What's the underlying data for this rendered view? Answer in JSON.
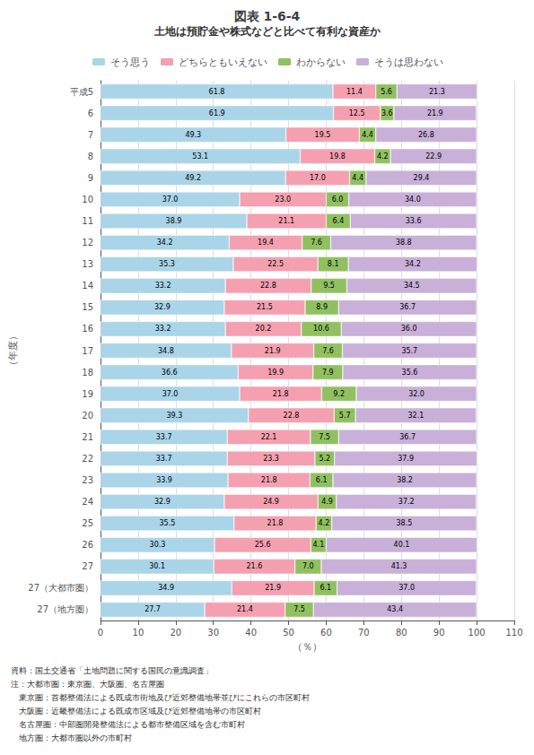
{
  "chart_data": {
    "type": "bar",
    "orientation": "horizontal",
    "stacked": true,
    "title": "図表 1-6-4",
    "subtitle": "土地は預貯金や株式などと比べて有利な資産か",
    "categories": [
      "平成5",
      "6",
      "7",
      "8",
      "9",
      "10",
      "11",
      "12",
      "13",
      "14",
      "15",
      "16",
      "17",
      "18",
      "19",
      "20",
      "21",
      "22",
      "23",
      "24",
      "25",
      "26",
      "27",
      "27（大都市圏）",
      "27（地方圏）"
    ],
    "series": [
      {
        "name": "そう思う",
        "color": "#aad4e8",
        "values": [
          61.8,
          61.9,
          49.3,
          53.1,
          49.2,
          37.0,
          38.9,
          34.2,
          35.3,
          33.2,
          32.9,
          33.2,
          34.8,
          36.6,
          37.0,
          39.3,
          33.7,
          33.7,
          33.9,
          32.9,
          35.5,
          30.3,
          30.1,
          34.9,
          27.7
        ],
        "value_labels": [
          "61.8",
          "61.9",
          "49.3",
          "53.1",
          "49.2",
          "37.0",
          "38.9",
          "34.2",
          "35.3",
          "33.2",
          "32.9",
          "33.2",
          "34.8",
          "36.6",
          "37.0",
          "39.3",
          "33.7",
          "33.7",
          "33.9",
          "32.9",
          "35.5",
          "30.3",
          "30.1",
          "34.9",
          "27.7"
        ]
      },
      {
        "name": "どちらともいえない",
        "color": "#f4a0b0",
        "values": [
          11.4,
          12.5,
          19.5,
          19.8,
          17.0,
          23.0,
          21.1,
          19.4,
          22.5,
          22.8,
          21.5,
          20.2,
          21.9,
          19.9,
          21.8,
          22.8,
          22.1,
          23.3,
          21.8,
          24.9,
          21.8,
          25.6,
          21.6,
          21.9,
          21.4
        ],
        "value_labels": [
          "11.4",
          "12.5",
          "19.5",
          "19.8",
          "17.0",
          "23.0",
          "21.1",
          "19.4",
          "22.5",
          "22.8",
          "21.5",
          "20.2",
          "21.9",
          "19.9",
          "21.8",
          "22.8",
          "22.1",
          "23.3",
          "21.8",
          "24.9",
          "21.8",
          "25.6",
          "21.6",
          "21.9",
          "21.4"
        ]
      },
      {
        "name": "わからない",
        "color": "#90c060",
        "values": [
          5.6,
          3.6,
          4.4,
          4.2,
          4.4,
          6.0,
          6.4,
          7.6,
          8.1,
          9.5,
          8.9,
          10.6,
          7.6,
          7.9,
          9.2,
          5.7,
          7.5,
          5.2,
          6.1,
          4.9,
          4.2,
          4.1,
          7.0,
          6.1,
          7.5
        ],
        "value_labels": [
          "5.6",
          "3.6",
          "4.4",
          "4.2",
          "4.4",
          "6.0",
          "6.4",
          "7.6",
          "8.1",
          "9.5",
          "8.9",
          "10.6",
          "7.6",
          "7.9",
          "9.2",
          "5.7",
          "7.5",
          "5.2",
          "6.1",
          "4.9",
          "4.2",
          "4.1",
          "7.0",
          "6.1",
          "7.5"
        ]
      },
      {
        "name": "そうは思わない",
        "color": "#c8b0d8",
        "values": [
          21.3,
          21.9,
          26.8,
          22.9,
          29.4,
          34.0,
          33.6,
          38.8,
          34.2,
          34.5,
          36.7,
          36.0,
          35.7,
          35.6,
          32.0,
          32.1,
          36.7,
          37.9,
          38.2,
          37.2,
          38.5,
          40.1,
          41.3,
          37.0,
          43.4
        ],
        "value_labels": [
          "21.3",
          "21.9",
          "26.8",
          "22.9",
          "29.4",
          "34.0",
          "33.6",
          "38.8",
          "34.2",
          "34.5",
          "36.7",
          "36.0",
          "35.7",
          "35.6",
          "32.0",
          "32.1",
          "36.7",
          "37.9",
          "38.2",
          "37.2",
          "38.5",
          "40.1",
          "41.3",
          "37.0",
          "43.4"
        ]
      }
    ],
    "xlim": [
      0,
      110
    ],
    "xticks": [
      0,
      10,
      20,
      30,
      40,
      50,
      60,
      70,
      80,
      90,
      100,
      110
    ],
    "xlabel": "（％）",
    "ylabel": "（年度）",
    "grid": true,
    "legend": "top",
    "data_labels": true,
    "annotations": [
      "資料：国土交通省「土地問題に関する国民の意識調査」",
      "注：大都市圏：東京圏、大阪圏、名古屋圏",
      "　東京圏：首都整備法による既成市街地及び近郊整備地帯並びにこれらの市区町村",
      "　大阪圏：近畿整備法による既成市区域及び近郊整備地帯の市区町村",
      "　名古屋圏：中部圏開発整備法による都市整備区域を含む市町村",
      "　地方圏：大都市圏以外の市町村"
    ]
  }
}
